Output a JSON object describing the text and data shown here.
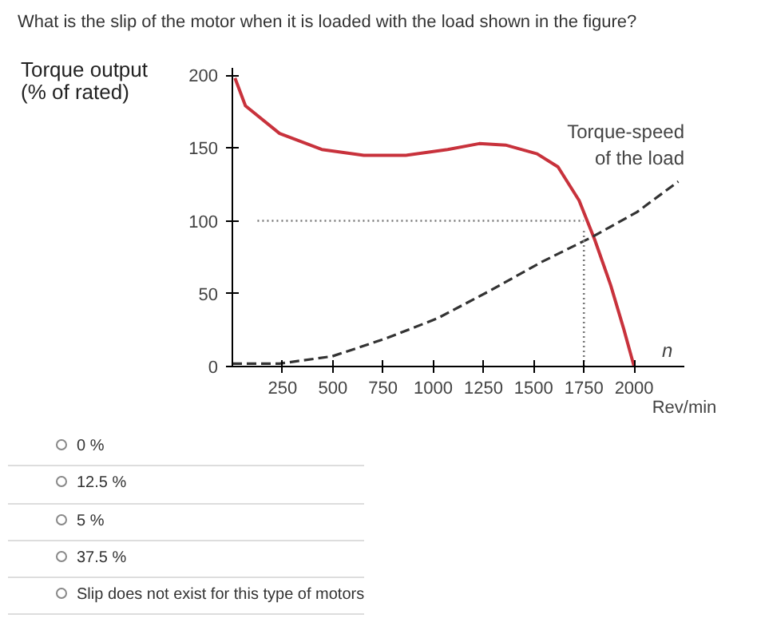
{
  "chart_data": {
    "type": "line",
    "title": "What is the slip of the motor when it is loaded with the load shown in the figure?",
    "ylabel": "Torque output\n(% of rated)",
    "xlabel": "Rev/min",
    "xlim": [
      0,
      2250
    ],
    "ylim": [
      0,
      205
    ],
    "xticks": [
      250,
      500,
      750,
      1000,
      1250,
      1500,
      1750,
      2000
    ],
    "yticks": [
      0,
      50,
      100,
      150,
      200
    ],
    "grid": false,
    "series": [
      {
        "color": "#c8323c",
        "line_style": "solid",
        "x": [
          13,
          65,
          235,
          445,
          654,
          863,
          1072,
          1229,
          1360,
          1517,
          1621,
          1726,
          1804,
          1883,
          1948,
          2000
        ],
        "values": [
          198,
          179,
          160,
          149,
          145,
          145,
          149,
          153,
          152,
          146,
          137,
          114,
          87,
          56,
          26,
          0
        ]
      },
      {
        "color": "#333333",
        "line_style": "dashed",
        "x": [
          0,
          235,
          497,
          759,
          1020,
          1282,
          1543,
          1792,
          2014,
          2220
        ],
        "values": [
          2,
          2,
          7,
          19,
          33,
          52,
          72,
          89,
          106,
          127
        ]
      }
    ],
    "ref_lines": [
      {
        "axis": "y",
        "value": 100,
        "line_style": "dotted",
        "color": "#777777"
      },
      {
        "axis": "x",
        "value": 1750,
        "line_style": "dotted",
        "color": "#777777"
      }
    ],
    "annotations": [
      "Torque-speed\nof the load",
      "n",
      "0 %",
      "12.5 %",
      "5 %",
      "37.5 %",
      "Slip does not exist for this type of motors"
    ]
  }
}
